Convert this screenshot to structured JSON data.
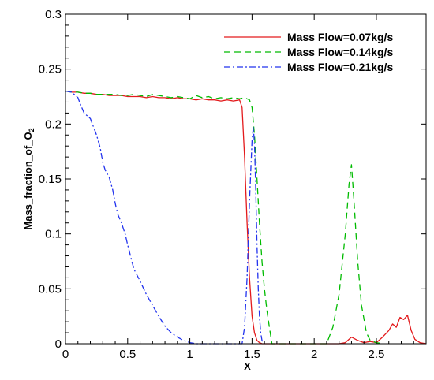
{
  "chart_data": {
    "type": "line",
    "title": "",
    "xlabel": "X",
    "ylabel_base": "Mass_fraction_of_O",
    "ylabel_subscript": "2",
    "xlim": [
      0,
      2.9
    ],
    "ylim": [
      0,
      0.3
    ],
    "x_ticks": [
      0,
      0.5,
      1,
      1.5,
      2,
      2.5
    ],
    "x_tick_labels": [
      "0",
      "0.5",
      "1",
      "1.5",
      "2",
      "2.5"
    ],
    "y_ticks": [
      0,
      0.05,
      0.1,
      0.15,
      0.2,
      0.25,
      0.3
    ],
    "y_tick_labels": [
      "0",
      "0.05",
      "0.1",
      "0.15",
      "0.2",
      "0.25",
      "0.3"
    ],
    "grid": false,
    "legend_position": "top-right",
    "series": [
      {
        "name": "Mass Flow=0.07kg/s",
        "color": "#e31a1c",
        "dash": "solid",
        "x": [
          0,
          0.05,
          0.1,
          0.15,
          0.2,
          0.25,
          0.3,
          0.35,
          0.4,
          0.45,
          0.5,
          0.55,
          0.6,
          0.65,
          0.7,
          0.75,
          0.8,
          0.85,
          0.9,
          0.95,
          1.0,
          1.05,
          1.1,
          1.15,
          1.2,
          1.25,
          1.3,
          1.35,
          1.4,
          1.42,
          1.44,
          1.46,
          1.48,
          1.5,
          1.52,
          1.54,
          1.56,
          1.58,
          1.6,
          2.2,
          2.25,
          2.3,
          2.35,
          2.4,
          2.45,
          2.5,
          2.55,
          2.6,
          2.63,
          2.66,
          2.69,
          2.72,
          2.75,
          2.78,
          2.81,
          2.85,
          2.9
        ],
        "y": [
          0.23,
          0.229,
          0.229,
          0.228,
          0.228,
          0.227,
          0.227,
          0.226,
          0.226,
          0.226,
          0.225,
          0.225,
          0.225,
          0.224,
          0.225,
          0.224,
          0.224,
          0.223,
          0.224,
          0.223,
          0.223,
          0.222,
          0.223,
          0.222,
          0.222,
          0.221,
          0.222,
          0.221,
          0.222,
          0.215,
          0.17,
          0.11,
          0.06,
          0.025,
          0.01,
          0.003,
          0.001,
          0.0,
          0.0,
          0.0,
          0.001,
          0.006,
          0.003,
          0.001,
          0.002,
          0.001,
          0.006,
          0.012,
          0.018,
          0.015,
          0.024,
          0.022,
          0.026,
          0.012,
          0.004,
          0.001,
          0.0
        ]
      },
      {
        "name": "Mass Flow=0.14kg/s",
        "color": "#00bb00",
        "dash": "dashed",
        "x": [
          0,
          0.05,
          0.1,
          0.15,
          0.2,
          0.25,
          0.3,
          0.35,
          0.4,
          0.45,
          0.5,
          0.55,
          0.6,
          0.65,
          0.7,
          0.75,
          0.8,
          0.85,
          0.9,
          0.95,
          1.0,
          1.05,
          1.1,
          1.15,
          1.2,
          1.25,
          1.3,
          1.35,
          1.4,
          1.44,
          1.48,
          1.5,
          1.52,
          1.54,
          1.56,
          1.58,
          1.6,
          1.62,
          1.64,
          1.66,
          2.1,
          2.15,
          2.2,
          2.25,
          2.28,
          2.3,
          2.32,
          2.35,
          2.38,
          2.42,
          2.45,
          2.5,
          2.55
        ],
        "y": [
          0.23,
          0.229,
          0.229,
          0.228,
          0.228,
          0.227,
          0.227,
          0.227,
          0.227,
          0.226,
          0.226,
          0.227,
          0.226,
          0.225,
          0.227,
          0.226,
          0.225,
          0.224,
          0.225,
          0.224,
          0.223,
          0.226,
          0.224,
          0.225,
          0.223,
          0.224,
          0.223,
          0.224,
          0.223,
          0.224,
          0.222,
          0.215,
          0.19,
          0.15,
          0.11,
          0.075,
          0.05,
          0.03,
          0.015,
          0.0,
          0.0,
          0.015,
          0.045,
          0.1,
          0.145,
          0.163,
          0.13,
          0.075,
          0.035,
          0.01,
          0.003,
          0.001,
          0.0
        ]
      },
      {
        "name": "Mass Flow=0.21kg/s",
        "color": "#2233ee",
        "dash": "dashdot",
        "x": [
          0,
          0.05,
          0.1,
          0.12,
          0.15,
          0.2,
          0.25,
          0.28,
          0.3,
          0.32,
          0.35,
          0.38,
          0.4,
          0.42,
          0.45,
          0.48,
          0.5,
          0.55,
          0.6,
          0.65,
          0.7,
          0.75,
          0.8,
          0.85,
          0.9,
          0.95,
          1.0,
          1.05,
          1.1,
          1.42,
          1.44,
          1.46,
          1.48,
          1.5,
          1.51,
          1.52,
          1.53,
          1.54,
          1.55,
          1.56,
          1.57,
          1.58,
          1.6
        ],
        "y": [
          0.23,
          0.229,
          0.224,
          0.218,
          0.21,
          0.205,
          0.19,
          0.178,
          0.165,
          0.158,
          0.152,
          0.14,
          0.128,
          0.118,
          0.11,
          0.1,
          0.09,
          0.068,
          0.057,
          0.045,
          0.035,
          0.025,
          0.016,
          0.01,
          0.006,
          0.003,
          0.001,
          0.0,
          0.0,
          0.0,
          0.015,
          0.06,
          0.13,
          0.185,
          0.197,
          0.182,
          0.14,
          0.09,
          0.05,
          0.025,
          0.01,
          0.003,
          0.0
        ]
      }
    ]
  }
}
